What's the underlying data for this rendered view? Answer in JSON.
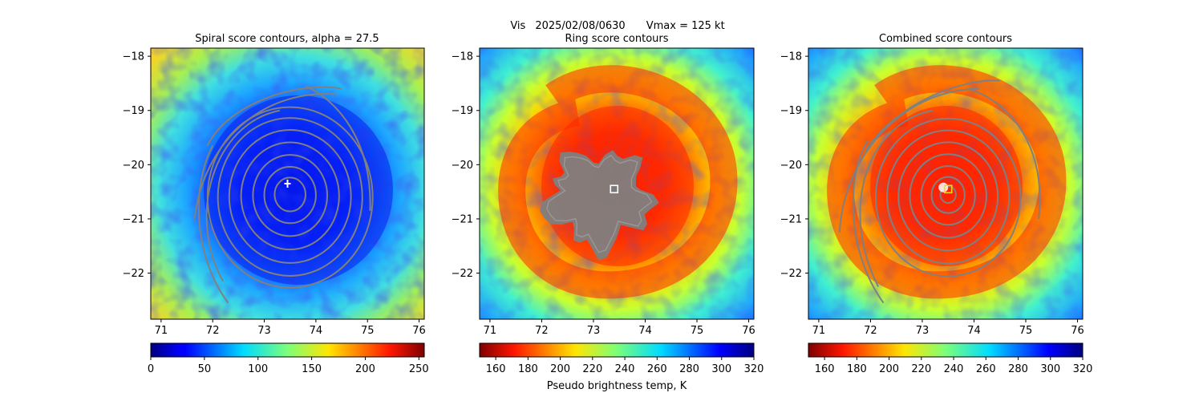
{
  "figure": {
    "suptitle_product": "Vis",
    "suptitle_datetime": "2025/02/08/0630",
    "suptitle_vmax": "Vmax = 125 kt",
    "xlabel_center": "Pseudo brightness temp, K"
  },
  "colors": {
    "contour": "#808080",
    "marker_spiral": "#ffffff",
    "marker_ring": "#ffffff",
    "marker_combined": "#ffd21a"
  },
  "chart_data": [
    {
      "type": "heatmap",
      "title": "Spiral score contours, alpha = 27.5",
      "colormap": "jet",
      "xlim": [
        70.8,
        76.1
      ],
      "ylim": [
        -22.85,
        -17.85
      ],
      "xticks": [
        71,
        72,
        73,
        74,
        75,
        76
      ],
      "yticks": [
        -18,
        -19,
        -20,
        -21,
        -22
      ],
      "storm_center": [
        73.45,
        -20.35
      ],
      "contour_center": [
        73.5,
        -20.55
      ],
      "contour_radii_deg": [
        0.3,
        0.5,
        0.72,
        0.95,
        1.18,
        1.4,
        1.6
      ],
      "marker": "plus",
      "colorbar": {
        "range": [
          0,
          255
        ],
        "ticks": [
          0,
          50,
          100,
          150,
          200,
          250
        ],
        "reversed": false
      }
    },
    {
      "type": "heatmap",
      "title": "Ring score contours",
      "colormap": "jet_r",
      "xlim": [
        70.8,
        76.1
      ],
      "ylim": [
        -22.85,
        -17.85
      ],
      "xticks": [
        71,
        72,
        73,
        74,
        75,
        76
      ],
      "yticks": [
        -18,
        -19,
        -20,
        -21,
        -22
      ],
      "storm_center": [
        73.4,
        -20.45
      ],
      "marker": "square",
      "colorbar": {
        "range": [
          150,
          320
        ],
        "ticks": [
          160,
          180,
          200,
          220,
          240,
          260,
          280,
          300,
          320
        ],
        "reversed": true
      }
    },
    {
      "type": "heatmap",
      "title": "Combined score contours",
      "colormap": "jet_r",
      "xlim": [
        70.8,
        76.1
      ],
      "ylim": [
        -22.85,
        -17.85
      ],
      "xticks": [
        71,
        72,
        73,
        74,
        75,
        76
      ],
      "yticks": [
        -18,
        -19,
        -20,
        -21,
        -22
      ],
      "storm_center": [
        73.5,
        -20.45
      ],
      "contour_center": [
        73.5,
        -20.55
      ],
      "contour_radii_deg": [
        0.15,
        0.32,
        0.52,
        0.74,
        0.96,
        1.18,
        1.4,
        1.62
      ],
      "marker": "square",
      "colorbar": {
        "range": [
          150,
          320
        ],
        "ticks": [
          160,
          180,
          200,
          220,
          240,
          260,
          280,
          300,
          320
        ],
        "reversed": true
      }
    }
  ]
}
